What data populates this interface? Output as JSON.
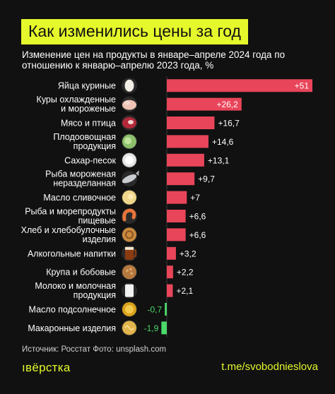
{
  "title": "Как изменились цены за год",
  "subtitle": "Изменение цен на продукты в январе–апреле 2024 года по отношению к январю–апрелю 2023 года, %",
  "source": "Источник: Росстат   Фото: unsplash.com",
  "brand": "ıвёрстка",
  "channel": "t.me/svobodnieslova",
  "colors": {
    "positive": "#e8455a",
    "negative": "#4cd96a",
    "accent": "#e5f82b",
    "background": "#111111"
  },
  "chart_data": {
    "type": "bar",
    "orientation": "horizontal",
    "categories": [
      [
        "Яйца куриные"
      ],
      [
        "Куры охлажденные",
        "и мороженые"
      ],
      [
        "Мясо и птица"
      ],
      [
        "Плодоовощная",
        "продукция"
      ],
      [
        "Сахар-песок"
      ],
      [
        "Рыба мороженая",
        "неразделанная"
      ],
      [
        "Масло сливочное"
      ],
      [
        "Рыба и морепродукты",
        "пищевые"
      ],
      [
        "Хлеб и хлебобулочные",
        "изделия"
      ],
      [
        "Алкогольные напитки"
      ],
      [
        "Крупа и бобовые"
      ],
      [
        "Молоко и молочная",
        "продукция"
      ],
      [
        "Масло подсолнечное"
      ],
      [
        "Макаронные изделия"
      ]
    ],
    "values": [
      51,
      26.2,
      16.7,
      14.6,
      13.1,
      9.7,
      7,
      6.6,
      6.6,
      3.2,
      2.2,
      2.1,
      -0.7,
      -1.9
    ],
    "value_labels": [
      "+51",
      "+26,2",
      "+16,7",
      "+14,6",
      "+13,1",
      "+9,7",
      "+7",
      "+6,6",
      "+6,6",
      "+3,2",
      "+2,2",
      "+2,1",
      "-0,7",
      "-1,9"
    ],
    "icons": [
      "egg-icon",
      "chicken-icon",
      "meat-icon",
      "cabbage-icon",
      "sugar-icon",
      "fish-icon",
      "butter-icon",
      "shrimp-icon",
      "bread-icon",
      "beer-icon",
      "grain-icon",
      "milk-icon",
      "oil-icon",
      "pasta-icon"
    ]
  }
}
